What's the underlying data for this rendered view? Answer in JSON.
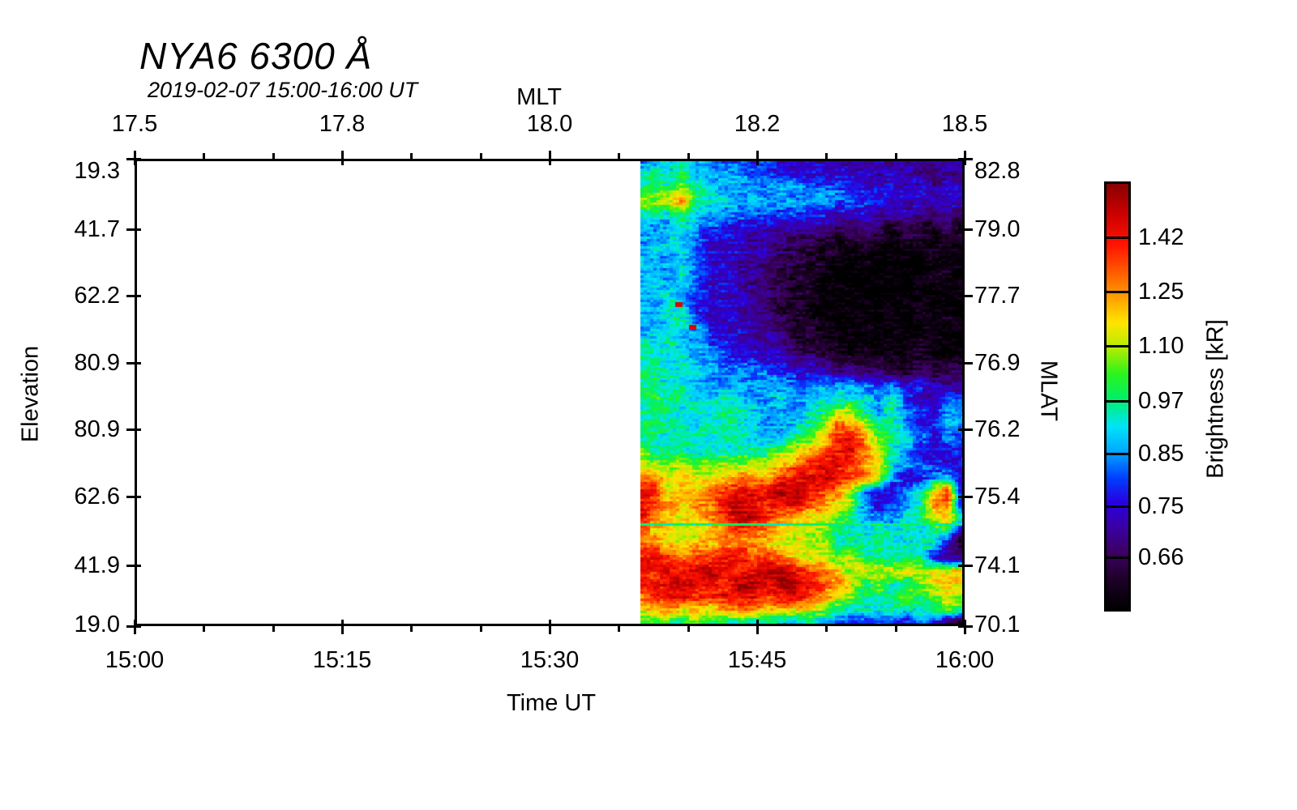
{
  "title": "NYA6 6300 Å",
  "subtitle": "2019-02-07 15:00-16:00 UT",
  "axes": {
    "top": {
      "label": "MLT",
      "ticks": [
        "17.5",
        "17.8",
        "18.0",
        "18.2",
        "18.5"
      ]
    },
    "bottom": {
      "label": "Time UT",
      "ticks": [
        "15:00",
        "15:15",
        "15:30",
        "15:45",
        "16:00"
      ]
    },
    "left": {
      "label": "Elevation",
      "ticks": [
        "19.3",
        "41.7",
        "62.2",
        "80.9",
        "80.9",
        "62.6",
        "41.9",
        "19.0"
      ]
    },
    "right": {
      "label": "MLAT",
      "ticks": [
        "82.8",
        "79.0",
        "77.7",
        "76.9",
        "76.2",
        "75.4",
        "74.1",
        "70.1"
      ]
    }
  },
  "colorbar": {
    "label": "Brightness [kR]",
    "ticks": [
      "1.42",
      "1.25",
      "1.10",
      "0.97",
      "0.85",
      "0.75",
      "0.66"
    ]
  },
  "chart_data": {
    "type": "heatmap",
    "station": "NYA6",
    "wavelength_angstrom": 6300,
    "date": "2019-02-07",
    "time_range_ut": [
      "15:00",
      "16:00"
    ],
    "data_start_ut": "15:37",
    "x_axis": {
      "label": "Time UT",
      "ticks": [
        "15:00",
        "15:15",
        "15:30",
        "15:45",
        "16:00"
      ]
    },
    "x2_axis": {
      "label": "MLT",
      "ticks": [
        17.5,
        17.8,
        18.0,
        18.2,
        18.5
      ]
    },
    "y_axis": {
      "label": "Elevation",
      "ticks": [
        19.3,
        41.7,
        62.2,
        80.9,
        80.9,
        62.6,
        41.9,
        19.0
      ]
    },
    "y2_axis": {
      "label": "MLAT",
      "ticks": [
        82.8,
        79.0,
        77.7,
        76.9,
        76.2,
        75.4,
        74.1,
        70.1
      ]
    },
    "value_label": "Brightness [kR]",
    "value_scale": "log",
    "value_min": 0.575,
    "value_max": 1.65,
    "colorbar_ticks": [
      1.42,
      1.25,
      1.1,
      0.97,
      0.85,
      0.75,
      0.66
    ],
    "colormap_stops": [
      [
        0.0,
        "#000000"
      ],
      [
        0.07,
        "#1e0028"
      ],
      [
        0.131,
        "#3c0060"
      ],
      [
        0.19,
        "#3a00a0"
      ],
      [
        0.252,
        "#2a00e0"
      ],
      [
        0.31,
        "#0040ff"
      ],
      [
        0.371,
        "#00a8ff"
      ],
      [
        0.43,
        "#00e4f8"
      ],
      [
        0.496,
        "#00f068"
      ],
      [
        0.555,
        "#2cf41c"
      ],
      [
        0.615,
        "#b4ec00"
      ],
      [
        0.675,
        "#ffe400"
      ],
      [
        0.737,
        "#ff9c00"
      ],
      [
        0.8,
        "#ff5400"
      ],
      [
        0.858,
        "#ff1400"
      ],
      [
        0.93,
        "#cc0000"
      ],
      [
        1.0,
        "#8a0000"
      ]
    ],
    "grid_cols": 24,
    "grid_rows": 36,
    "grid_note": "brightness kR, rows top(north horizon)->bottom, cols 15:37->16:00",
    "values": [
      [
        0.85,
        0.85,
        0.9,
        0.95,
        0.85,
        0.85,
        0.81,
        0.81,
        0.775,
        0.775,
        0.735,
        0.735,
        0.735,
        0.735,
        0.735,
        0.7,
        0.735,
        0.735,
        0.7,
        0.7,
        0.7,
        0.7,
        0.7,
        0.7
      ],
      [
        0.9,
        0.95,
        0.9,
        1.0,
        0.9,
        0.85,
        0.85,
        0.85,
        0.81,
        0.81,
        0.775,
        0.735,
        0.735,
        0.735,
        0.735,
        0.735,
        0.735,
        0.7,
        0.735,
        0.7,
        0.7,
        0.66,
        0.7,
        0.7
      ],
      [
        0.95,
        1.0,
        0.95,
        1.07,
        0.95,
        0.9,
        0.85,
        0.85,
        0.85,
        0.85,
        0.85,
        0.85,
        0.81,
        0.81,
        0.81,
        0.775,
        0.775,
        0.735,
        0.735,
        0.735,
        0.735,
        0.7,
        0.735,
        0.735
      ],
      [
        1.07,
        1.07,
        1.14,
        1.29,
        0.95,
        0.95,
        0.9,
        0.85,
        0.85,
        0.85,
        0.85,
        0.85,
        0.85,
        0.85,
        0.81,
        0.81,
        0.775,
        0.775,
        0.735,
        0.735,
        0.735,
        0.735,
        0.735,
        0.735
      ],
      [
        0.95,
        0.95,
        0.9,
        1.0,
        0.9,
        0.85,
        0.85,
        0.81,
        0.81,
        0.81,
        0.775,
        0.81,
        0.775,
        0.775,
        0.735,
        0.735,
        0.735,
        0.7,
        0.7,
        0.7,
        0.7,
        0.66,
        0.7,
        0.66
      ],
      [
        0.85,
        0.85,
        0.85,
        0.9,
        0.85,
        0.81,
        0.775,
        0.735,
        0.735,
        0.735,
        0.735,
        0.7,
        0.7,
        0.7,
        0.66,
        0.66,
        0.7,
        0.66,
        0.615,
        0.66,
        0.615,
        0.615,
        0.66,
        0.615
      ],
      [
        0.85,
        0.85,
        0.9,
        0.9,
        0.81,
        0.735,
        0.735,
        0.735,
        0.7,
        0.7,
        0.66,
        0.66,
        0.66,
        0.615,
        0.615,
        0.615,
        0.615,
        0.615,
        0.575,
        0.615,
        0.615,
        0.575,
        0.615,
        0.615
      ],
      [
        0.85,
        0.9,
        0.85,
        0.9,
        0.81,
        0.735,
        0.735,
        0.735,
        0.7,
        0.7,
        0.66,
        0.66,
        0.615,
        0.615,
        0.615,
        0.575,
        0.615,
        0.575,
        0.575,
        0.575,
        0.575,
        0.615,
        0.575,
        0.575
      ],
      [
        0.9,
        0.85,
        0.85,
        0.9,
        0.81,
        0.735,
        0.735,
        0.7,
        0.7,
        0.66,
        0.66,
        0.615,
        0.615,
        0.615,
        0.575,
        0.575,
        0.575,
        0.575,
        0.575,
        0.575,
        0.575,
        0.575,
        0.615,
        0.575
      ],
      [
        0.85,
        0.9,
        0.85,
        0.9,
        0.81,
        0.735,
        0.735,
        0.7,
        0.7,
        0.66,
        0.615,
        0.615,
        0.615,
        0.575,
        0.575,
        0.575,
        0.575,
        0.575,
        0.575,
        0.575,
        0.575,
        0.615,
        0.575,
        0.575
      ],
      [
        0.9,
        0.85,
        0.9,
        0.85,
        0.81,
        0.735,
        0.735,
        0.735,
        0.7,
        0.7,
        0.66,
        0.615,
        0.615,
        0.575,
        0.575,
        0.575,
        0.575,
        0.575,
        0.575,
        0.575,
        0.575,
        0.575,
        0.575,
        0.615
      ],
      [
        0.85,
        0.85,
        0.95,
        0.9,
        0.775,
        0.735,
        0.735,
        0.7,
        0.7,
        0.66,
        0.615,
        0.615,
        0.575,
        0.575,
        0.575,
        0.575,
        0.575,
        0.575,
        0.575,
        0.575,
        0.615,
        0.575,
        0.575,
        0.575
      ],
      [
        0.9,
        0.85,
        0.9,
        0.95,
        0.81,
        0.735,
        0.735,
        0.735,
        0.7,
        0.7,
        0.66,
        0.615,
        0.615,
        0.575,
        0.575,
        0.575,
        0.575,
        0.575,
        0.575,
        0.575,
        0.575,
        0.575,
        0.615,
        0.575
      ],
      [
        0.85,
        0.9,
        0.95,
        0.9,
        0.85,
        0.775,
        0.735,
        0.735,
        0.7,
        0.7,
        0.66,
        0.615,
        0.615,
        0.615,
        0.575,
        0.575,
        0.575,
        0.575,
        0.575,
        0.575,
        0.575,
        0.615,
        0.575,
        0.575
      ],
      [
        0.95,
        0.9,
        0.95,
        0.85,
        0.9,
        0.81,
        0.775,
        0.735,
        0.735,
        0.7,
        0.7,
        0.66,
        0.615,
        0.615,
        0.615,
        0.575,
        0.575,
        0.575,
        0.575,
        0.575,
        0.615,
        0.575,
        0.575,
        0.575
      ],
      [
        0.95,
        0.95,
        0.9,
        0.95,
        0.85,
        0.85,
        0.81,
        0.775,
        0.775,
        0.735,
        0.735,
        0.7,
        0.7,
        0.66,
        0.615,
        0.615,
        0.615,
        0.615,
        0.615,
        0.615,
        0.615,
        0.615,
        0.615,
        0.615
      ],
      [
        0.95,
        0.95,
        0.95,
        0.9,
        0.9,
        0.85,
        0.85,
        0.85,
        0.81,
        0.81,
        0.775,
        0.775,
        0.735,
        0.735,
        0.7,
        0.7,
        0.66,
        0.66,
        0.66,
        0.615,
        0.66,
        0.615,
        0.66,
        0.66
      ],
      [
        0.95,
        0.95,
        0.9,
        0.95,
        0.85,
        0.85,
        0.85,
        0.85,
        0.85,
        0.85,
        0.85,
        0.81,
        0.81,
        0.85,
        0.85,
        0.85,
        0.85,
        0.775,
        0.81,
        0.735,
        0.775,
        0.735,
        0.7,
        0.7
      ],
      [
        0.95,
        1.0,
        0.95,
        0.95,
        0.9,
        0.9,
        0.95,
        0.9,
        0.85,
        0.85,
        0.9,
        0.85,
        0.85,
        0.9,
        0.9,
        0.95,
        0.9,
        0.85,
        0.95,
        0.775,
        0.735,
        0.7,
        0.85,
        0.775
      ],
      [
        0.95,
        0.95,
        0.95,
        0.9,
        0.95,
        0.9,
        0.95,
        0.95,
        0.9,
        0.85,
        0.85,
        0.85,
        0.9,
        0.95,
        1.14,
        1.07,
        0.95,
        0.85,
        0.95,
        0.85,
        0.775,
        0.735,
        0.85,
        0.85
      ],
      [
        0.95,
        1.0,
        0.95,
        0.95,
        0.9,
        0.95,
        0.95,
        0.9,
        0.9,
        0.85,
        0.85,
        0.9,
        0.95,
        1.07,
        1.29,
        1.29,
        1.14,
        0.95,
        0.95,
        0.85,
        0.735,
        0.775,
        0.9,
        0.85
      ],
      [
        0.95,
        0.95,
        0.9,
        0.95,
        0.95,
        0.9,
        0.95,
        0.95,
        0.9,
        0.9,
        0.9,
        0.95,
        1.07,
        1.14,
        1.38,
        1.47,
        1.29,
        1.07,
        0.95,
        0.9,
        0.85,
        0.735,
        0.81,
        0.775
      ],
      [
        1.07,
        0.95,
        0.95,
        0.95,
        0.9,
        0.95,
        0.9,
        0.95,
        0.95,
        0.95,
        1.07,
        1.14,
        1.21,
        1.38,
        1.47,
        1.47,
        1.29,
        1.14,
        0.95,
        0.85,
        0.735,
        0.735,
        0.775,
        0.735
      ],
      [
        1.14,
        1.07,
        1.07,
        1.14,
        1.07,
        1.07,
        1.14,
        1.07,
        1.14,
        1.14,
        1.21,
        1.29,
        1.38,
        1.47,
        1.47,
        1.38,
        1.29,
        1.14,
        0.9,
        0.85,
        0.81,
        0.775,
        0.735,
        0.775
      ],
      [
        1.29,
        1.29,
        1.14,
        1.21,
        1.14,
        1.14,
        1.21,
        1.29,
        1.29,
        1.21,
        1.38,
        1.47,
        1.47,
        1.58,
        1.47,
        1.38,
        1.29,
        1.14,
        0.85,
        0.735,
        0.735,
        0.85,
        0.9,
        0.735
      ],
      [
        1.47,
        1.38,
        1.14,
        1.21,
        1.14,
        1.29,
        1.38,
        1.47,
        1.47,
        1.47,
        1.58,
        1.58,
        1.47,
        1.38,
        1.29,
        1.14,
        0.85,
        0.735,
        0.735,
        0.85,
        0.9,
        1.21,
        1.38,
        0.7
      ],
      [
        1.47,
        1.38,
        1.29,
        1.14,
        1.29,
        1.29,
        1.47,
        1.58,
        1.47,
        1.38,
        1.47,
        1.47,
        1.38,
        1.29,
        1.14,
        1.07,
        0.85,
        0.735,
        0.81,
        0.85,
        0.95,
        1.29,
        1.29,
        0.7
      ],
      [
        1.47,
        1.29,
        1.21,
        1.14,
        1.21,
        1.29,
        1.38,
        1.58,
        1.58,
        1.38,
        1.29,
        1.21,
        1.14,
        1.14,
        1.07,
        0.95,
        0.85,
        0.85,
        0.85,
        0.9,
        0.95,
        1.14,
        1.21,
        0.9
      ],
      [
        1.29,
        1.21,
        1.14,
        1.07,
        1.14,
        1.21,
        1.29,
        1.38,
        1.29,
        1.29,
        1.21,
        1.14,
        1.14,
        1.07,
        0.95,
        0.95,
        0.9,
        0.95,
        0.9,
        0.95,
        0.9,
        0.95,
        0.95,
        0.66
      ],
      [
        1.29,
        1.29,
        1.21,
        1.14,
        1.21,
        1.21,
        1.29,
        1.29,
        1.29,
        1.21,
        1.14,
        1.14,
        1.07,
        1.14,
        0.95,
        0.95,
        0.95,
        0.95,
        0.95,
        0.9,
        0.95,
        0.9,
        0.7,
        0.615
      ],
      [
        1.47,
        1.47,
        1.38,
        1.29,
        1.38,
        1.38,
        1.47,
        1.47,
        1.38,
        1.38,
        1.29,
        1.21,
        1.14,
        1.14,
        1.07,
        1.14,
        0.95,
        0.95,
        0.95,
        0.95,
        0.95,
        0.735,
        0.7,
        0.66
      ],
      [
        1.47,
        1.38,
        1.47,
        1.47,
        1.47,
        1.58,
        1.47,
        1.38,
        1.47,
        1.58,
        1.58,
        1.47,
        1.38,
        1.29,
        1.21,
        1.07,
        1.14,
        1.07,
        1.14,
        1.14,
        1.07,
        1.21,
        1.14,
        1.21
      ],
      [
        1.38,
        1.47,
        1.47,
        1.58,
        1.47,
        1.47,
        1.38,
        1.58,
        1.58,
        1.47,
        1.58,
        1.58,
        1.47,
        1.38,
        1.29,
        1.14,
        0.95,
        1.07,
        0.95,
        0.95,
        1.07,
        1.14,
        1.21,
        1.14
      ],
      [
        1.29,
        1.38,
        1.47,
        1.47,
        1.38,
        1.38,
        1.47,
        1.47,
        1.47,
        1.38,
        1.47,
        1.47,
        1.38,
        1.29,
        1.14,
        1.07,
        0.95,
        0.95,
        0.95,
        1.07,
        0.95,
        1.07,
        1.14,
        1.07
      ],
      [
        1.14,
        1.21,
        1.29,
        1.14,
        1.21,
        1.14,
        1.21,
        1.29,
        1.29,
        1.14,
        1.21,
        1.14,
        1.14,
        1.07,
        0.95,
        0.9,
        0.95,
        0.9,
        0.95,
        0.9,
        0.95,
        0.95,
        1.07,
        0.95
      ],
      [
        0.95,
        1.0,
        0.95,
        0.95,
        1.07,
        0.95,
        0.95,
        0.9,
        0.9,
        0.95,
        0.85,
        0.85,
        0.9,
        0.85,
        0.81,
        0.735,
        0.735,
        0.81,
        0.775,
        0.735,
        0.81,
        0.735,
        0.615,
        0.575
      ]
    ],
    "annotations": {
      "green_line": {
        "y_frac": 0.783,
        "value": 0.97
      },
      "red_specks": [
        {
          "x_frac": 0.108,
          "y_frac": 0.305,
          "value": 1.5
        },
        {
          "x_frac": 0.152,
          "y_frac": 0.353,
          "value": 1.5
        }
      ]
    }
  }
}
